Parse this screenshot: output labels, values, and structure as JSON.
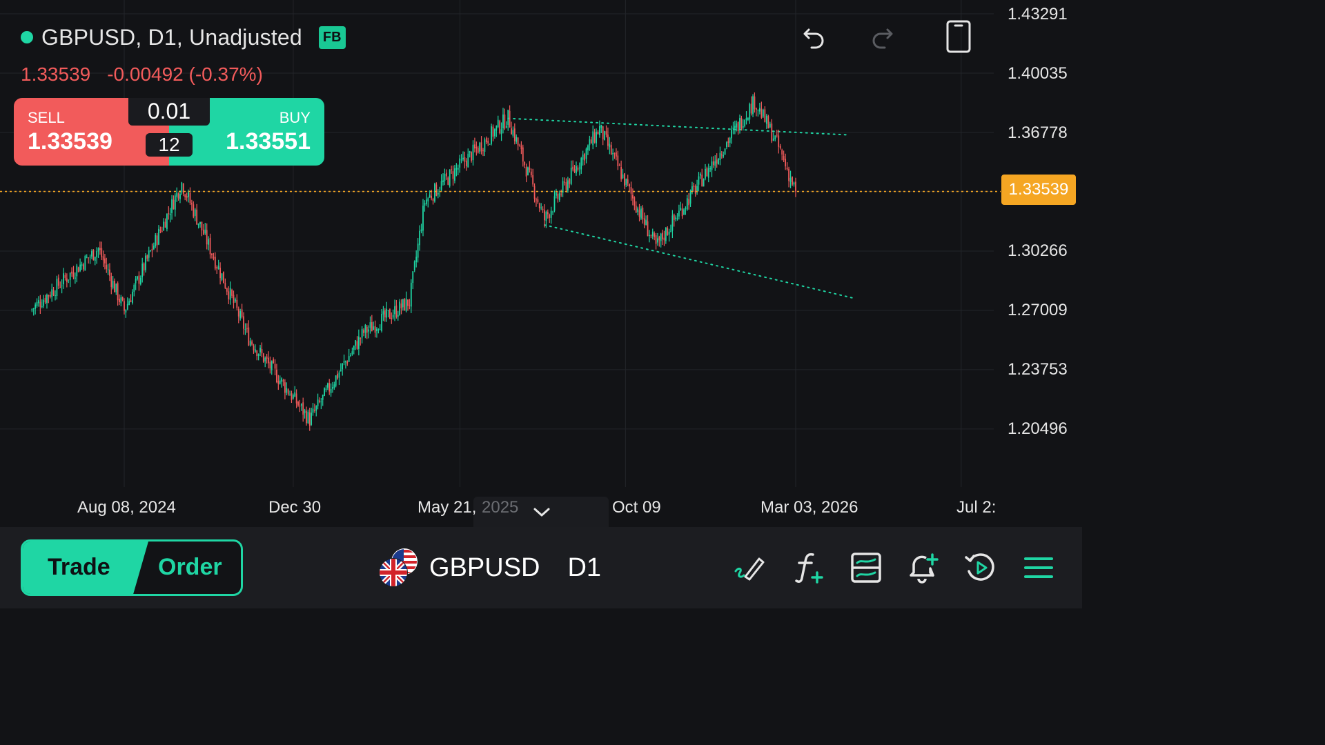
{
  "header": {
    "title": "GBPUSD, D1, Unadjusted",
    "badge": "FB",
    "last_price": "1.33539",
    "change": "-0.00492 (-0.37%)"
  },
  "trade_widget": {
    "sell_label": "SELL",
    "sell_price": "1.33539",
    "buy_label": "BUY",
    "buy_price": "1.33551",
    "lot_size": "0.01",
    "spread": "12"
  },
  "price_axis": {
    "labels": [
      "1.43291",
      "1.40035",
      "1.36778",
      "1.33539",
      "1.30266",
      "1.27009",
      "1.23753",
      "1.20496"
    ],
    "current_price_tag": "1.33539"
  },
  "time_axis": {
    "labels": [
      "Aug 08, 2024",
      "Dec 30",
      "May 21,",
      "2025",
      "Oct 09",
      "Mar 03, 2026",
      "Jul 2:"
    ]
  },
  "bottom_bar": {
    "trade_label": "Trade",
    "order_label": "Order",
    "symbol": "GBPUSD",
    "timeframe": "D1"
  },
  "icons": {
    "undo": "undo-icon",
    "redo": "redo-icon",
    "device": "phone-icon",
    "draw": "draw-icon",
    "indicators": "function-add-icon",
    "templates": "chart-template-icon",
    "alert": "bell-add-icon",
    "replay": "replay-icon",
    "menu": "menu-icon"
  },
  "colors": {
    "up": "#1fd6a4",
    "down": "#f25b5b",
    "current_price": "#f5a623",
    "background": "#121316"
  },
  "chart_data": {
    "type": "candlestick",
    "symbol": "GBPUSD",
    "timeframe": "D1",
    "ylim": [
      1.185,
      1.44
    ],
    "current_price": 1.33539,
    "keypoints": [
      {
        "date": "2024-05-20",
        "close": 1.27
      },
      {
        "date": "2024-07-17",
        "close": 1.304
      },
      {
        "date": "2024-08-08",
        "close": 1.27
      },
      {
        "date": "2024-09-26",
        "close": 1.34
      },
      {
        "date": "2024-11-22",
        "close": 1.255
      },
      {
        "date": "2025-01-13",
        "close": 1.21
      },
      {
        "date": "2025-02-28",
        "close": 1.258
      },
      {
        "date": "2025-04-08",
        "close": 1.275
      },
      {
        "date": "2025-04-21",
        "close": 1.33
      },
      {
        "date": "2025-07-01",
        "close": 1.376
      },
      {
        "date": "2025-08-01",
        "close": 1.32
      },
      {
        "date": "2025-09-17",
        "close": 1.37
      },
      {
        "date": "2025-11-04",
        "close": 1.305
      },
      {
        "date": "2026-01-27",
        "close": 1.385
      },
      {
        "date": "2026-02-15",
        "close": 1.362
      },
      {
        "date": "2026-03-03",
        "close": 1.33539
      }
    ],
    "trendlines": [
      {
        "style": "dotted",
        "from": {
          "date": "2025-07-01",
          "price": 1.3755
        },
        "to": {
          "date": "2026-04-15",
          "price": 1.3665
        }
      },
      {
        "style": "dotted",
        "from": {
          "date": "2025-08-01",
          "price": 1.317
        },
        "to": {
          "date": "2026-04-20",
          "price": 1.277
        }
      }
    ]
  }
}
